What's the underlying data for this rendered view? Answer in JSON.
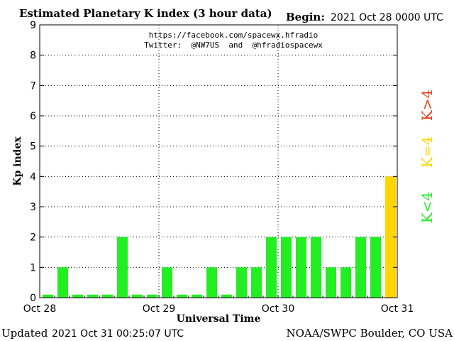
{
  "header": {
    "title": "Estimated Planetary K index (3 hour data)",
    "begin_label": "Begin:",
    "begin_value": "2021 Oct 28 0000 UTC"
  },
  "credits": {
    "line1": "https://facebook.com/spacewx.hfradio",
    "line2": "Twitter:  @NW7US  and  @hfradiospacewx"
  },
  "footer": {
    "updated_label": "Updated",
    "updated_value": "2021 Oct 31 00:25:07 UTC",
    "source": "NOAA/SWPC Boulder, CO USA"
  },
  "side_legend": {
    "high": "K>4",
    "equal": "K=4",
    "low": "K<4"
  },
  "colors": {
    "low": "#22ee22",
    "equal": "#ffd700",
    "high": "#e8401a",
    "axis": "#000000",
    "grid": "#000000"
  },
  "chart_data": {
    "type": "bar",
    "xlabel": "Universal Time",
    "ylabel": "Kp index",
    "ylim": [
      0,
      9
    ],
    "y_ticks": [
      0,
      1,
      2,
      3,
      4,
      5,
      6,
      7,
      8,
      9
    ],
    "x_tick_labels": [
      "Oct 28",
      "Oct 29",
      "Oct 30",
      "Oct 31"
    ],
    "interval_hours": 3,
    "grid": "dotted at each day boundary and each integer Kp level",
    "values": [
      0,
      1,
      0,
      0,
      0,
      2,
      0,
      0,
      1,
      0,
      0,
      1,
      0,
      1,
      1,
      2,
      2,
      2,
      2,
      1,
      1,
      2,
      2,
      4
    ]
  }
}
